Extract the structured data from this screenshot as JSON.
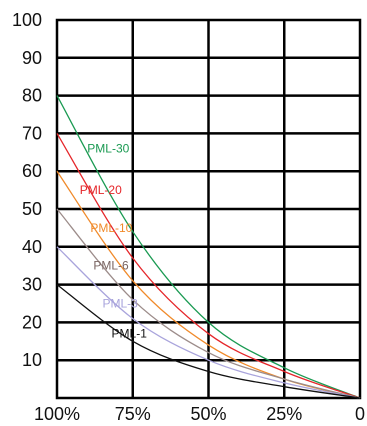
{
  "chart_data": {
    "type": "line",
    "title": "",
    "xlabel": "",
    "ylabel": "",
    "x_tick_labels": [
      "100%",
      "75%",
      "50%",
      "25%",
      "0"
    ],
    "y_ticks": [
      10,
      20,
      30,
      40,
      50,
      60,
      70,
      80,
      90,
      100
    ],
    "xlim": [
      100,
      0
    ],
    "ylim": [
      0,
      100
    ],
    "grid": true,
    "series": [
      {
        "name": "PML-30",
        "color": "#1a9a52",
        "x": [
          100,
          75,
          50,
          25,
          0
        ],
        "y": [
          80,
          44,
          20,
          8,
          0
        ]
      },
      {
        "name": "PML-20",
        "color": "#e5262a",
        "x": [
          100,
          75,
          50,
          25,
          0
        ],
        "y": [
          70,
          37,
          17,
          7,
          0
        ]
      },
      {
        "name": "PML-10",
        "color": "#f08a2a",
        "x": [
          100,
          75,
          50,
          25,
          0
        ],
        "y": [
          60,
          31,
          14,
          5,
          0
        ]
      },
      {
        "name": "PML-6",
        "color": "#9c8c8a",
        "x": [
          100,
          75,
          50,
          25,
          0
        ],
        "y": [
          50,
          26,
          12,
          5,
          0
        ]
      },
      {
        "name": "PML-3",
        "color": "#a9a4dc",
        "x": [
          100,
          75,
          50,
          25,
          0
        ],
        "y": [
          40,
          21,
          10,
          4,
          0
        ]
      },
      {
        "name": "PML-1",
        "color": "#111111",
        "x": [
          100,
          75,
          50,
          25,
          0
        ],
        "y": [
          30,
          15,
          7,
          3,
          0
        ]
      }
    ],
    "labels": [
      {
        "text": "PML-30",
        "color": "#1a9a52",
        "x": 90,
        "y": 66
      },
      {
        "text": "PML-20",
        "color": "#e5262a",
        "x": 92.5,
        "y": 55
      },
      {
        "text": "PML-10",
        "color": "#f08a2a",
        "x": 89,
        "y": 45
      },
      {
        "text": "PML-6",
        "color": "#7a6562",
        "x": 88,
        "y": 35
      },
      {
        "text": "PML-3",
        "color": "#a9a4dc",
        "x": 85,
        "y": 25
      },
      {
        "text": "PML-1",
        "color": "#111111",
        "x": 82,
        "y": 17
      }
    ]
  }
}
